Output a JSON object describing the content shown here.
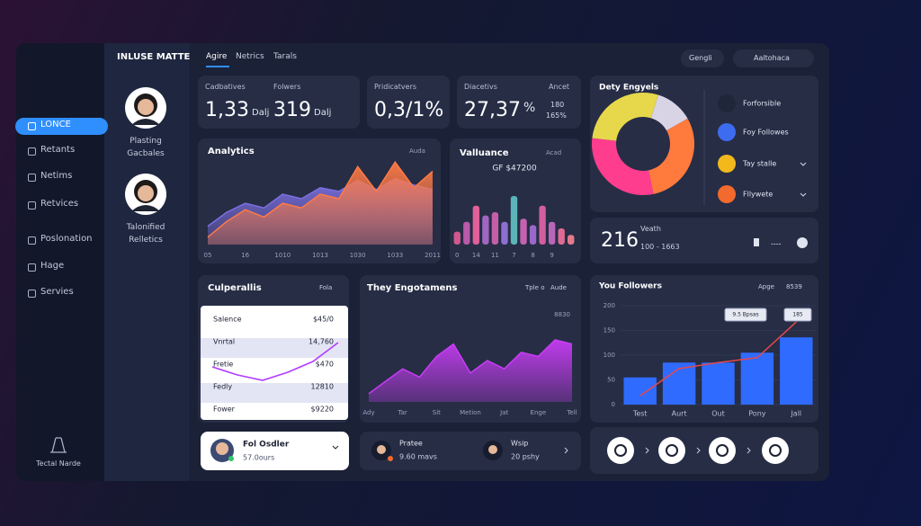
{
  "sidebar": {
    "items": [
      "LONCE",
      "Retants",
      "Netims",
      "Retvices",
      "Poslonation",
      "Hage",
      "Servies"
    ],
    "footer": "Tectal Narde"
  },
  "profiles": {
    "title": "INLUSE MATTE",
    "people": [
      "Plasting Gacbales",
      "Talonified Relletics"
    ]
  },
  "tabs": [
    "Agire",
    "Netrics",
    "Tarals"
  ],
  "toolbar": [
    "Gengli",
    "Aaltohaca"
  ],
  "stats": [
    {
      "labels": [
        "Cadbatives",
        "Folwers"
      ],
      "values": [
        {
          "value": "1,33",
          "unit": "Dalj"
        },
        {
          "value": "319",
          "unit": "Dalj"
        }
      ]
    },
    {
      "labels": [
        "Pridicatvers"
      ],
      "values": [
        {
          "value": "0,3/1%"
        }
      ]
    },
    {
      "labels": [
        "Diacetivs",
        "Ancet"
      ],
      "values": [
        {
          "value": "27,37",
          "unit": "%"
        }
      ],
      "side": [
        "180",
        "165%"
      ]
    }
  ],
  "analytics": {
    "type": "area",
    "title": "Analytics",
    "filter": "Auda",
    "categories": [
      "05",
      null,
      "16",
      null,
      "1010",
      null,
      "1013",
      null,
      "1030",
      null,
      "1033",
      null,
      "2011"
    ],
    "ylim": [
      0,
      100
    ],
    "series": [
      {
        "color": "#7c6fe0",
        "values": [
          20,
          35,
          45,
          40,
          55,
          50,
          62,
          58,
          70,
          60,
          72,
          65,
          60
        ]
      },
      {
        "color": "#ff7a45",
        "values": [
          8,
          25,
          38,
          30,
          45,
          40,
          55,
          50,
          85,
          58,
          90,
          62,
          80
        ]
      }
    ]
  },
  "valluance": {
    "type": "bar",
    "title": "Valluance",
    "filter": "Acad",
    "subtitle": "GF $47200",
    "categories": [
      "0",
      null,
      "14",
      null,
      "11",
      null,
      "7",
      null,
      "8",
      null,
      "9",
      null,
      null
    ],
    "ylim": [
      0,
      100
    ],
    "values": [
      20,
      35,
      60,
      45,
      50,
      35,
      75,
      40,
      30,
      60,
      35,
      25,
      15
    ],
    "colors": [
      "#d0578f",
      "#b95ba8",
      "#e0609a",
      "#a066c0",
      "#c55ea8",
      "#8c6fd0",
      "#5bb5b8",
      "#c262b0",
      "#9a68c8",
      "#d25e9e",
      "#b866b8",
      "#de6a94",
      "#e57a8a"
    ]
  },
  "engyels": {
    "type": "donut",
    "title": "Dety Engyels",
    "values": [
      12,
      30,
      30,
      28
    ],
    "colors": [
      "#d9d3e6",
      "#ff7a3d",
      "#ff3d8e",
      "#e6d84a"
    ],
    "legend": [
      "Forforsible",
      "Foy Followes",
      "Tay stalle",
      "Fllywete"
    ]
  },
  "summary": {
    "value": "216",
    "label": "Veath",
    "range": "100 - 1663",
    "dash": "----"
  },
  "culperallis": {
    "title": "Culperallis",
    "filter": "Fola",
    "rows": [
      [
        "Salence",
        "$45/0"
      ],
      [
        "Vnrtal",
        "14,760"
      ],
      [
        "Fretie",
        "$470"
      ],
      [
        "Fedly",
        "12810"
      ],
      [
        "Fower",
        "$9220"
      ]
    ],
    "trend": {
      "type": "line",
      "color": "#b23cff",
      "ylim": [
        0,
        100
      ],
      "values": [
        45,
        30,
        20,
        35,
        55,
        90
      ]
    }
  },
  "engagements": {
    "type": "area",
    "title": "They Engotamens",
    "filters": [
      "Tple o",
      "Aude"
    ],
    "annotation": "8830",
    "categories": [
      "Ady",
      null,
      "Tar",
      null,
      "Sit",
      null,
      "Metion",
      null,
      "Jat",
      null,
      "Enge",
      null,
      "Tell"
    ],
    "ylim": [
      0,
      100
    ],
    "series": [
      {
        "color": "#c83cf5",
        "values": [
          10,
          25,
          40,
          30,
          55,
          70,
          35,
          50,
          40,
          60,
          55,
          75,
          70
        ]
      }
    ]
  },
  "followers": {
    "type": "bar_line",
    "title": "You Followers",
    "filters": [
      "Apge",
      "8539"
    ],
    "categories": [
      "Test",
      "Aurt",
      "Out",
      "Pony",
      "Jall"
    ],
    "ylim": [
      0,
      200
    ],
    "yticks": [
      0,
      50,
      100,
      150,
      200
    ],
    "series": [
      {
        "type": "bar",
        "color": "#2f6bff",
        "values": [
          55,
          85,
          85,
          105,
          136
        ]
      },
      {
        "type": "line",
        "color": "#e5484d",
        "values": [
          18,
          73,
          85,
          95,
          167
        ]
      }
    ],
    "annotations": [
      "9.5 Bpsas",
      "185"
    ]
  },
  "footer_cards": [
    {
      "title": "Fol Osdler",
      "detail": "57.0ours"
    },
    {
      "title": "Pratee",
      "detail": "9.60 mavs"
    },
    {
      "title": "Wsip",
      "detail": "20 pshy"
    }
  ]
}
